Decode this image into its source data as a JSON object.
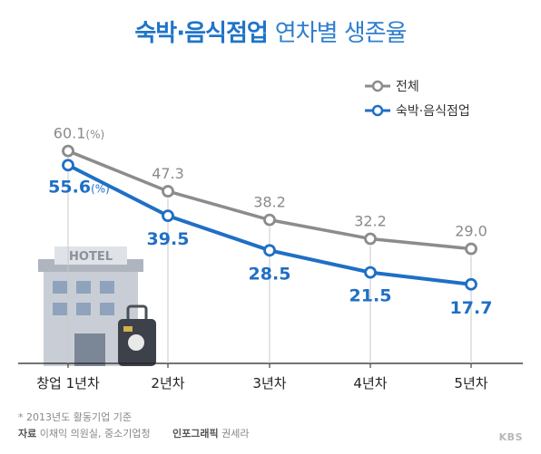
{
  "title_main": "숙박·음식점업",
  "title_rest": "연차별 생존율",
  "legend": [
    "전체",
    "숙박·음식점업"
  ],
  "unit": "(%)",
  "footnote": "* 2013년도 활동기업 기준",
  "source_label": "자료",
  "source_text": "이채익 의원실, 중소기업청",
  "credit_label": "인포그래픽",
  "credit_name": "권세라",
  "logo": "KBS",
  "colors": {
    "overall": "#8c8c8c",
    "lodging": "#1f6fc5",
    "title": "#1f74c9"
  },
  "icons": [
    "hotel-building-icon",
    "suitcase-icon"
  ],
  "chart_data": {
    "type": "line",
    "title": "숙박·음식점업 연차별 생존율",
    "categories": [
      "창업 1년차",
      "2년차",
      "3년차",
      "4년차",
      "5년차"
    ],
    "series": [
      {
        "name": "전체",
        "values": [
          60.1,
          47.3,
          38.2,
          32.2,
          29.0
        ],
        "labels": [
          "60.1",
          "47.3",
          "38.2",
          "32.2",
          "29.0"
        ]
      },
      {
        "name": "숙박·음식점업",
        "values": [
          55.6,
          39.5,
          28.5,
          21.5,
          17.7
        ],
        "labels": [
          "55.6",
          "39.5",
          "28.5",
          "21.5",
          "17.7"
        ]
      }
    ],
    "ylabel": "",
    "xlabel": "",
    "grid": false,
    "legend_position": "top-right",
    "ylim": [
      10,
      70
    ]
  }
}
